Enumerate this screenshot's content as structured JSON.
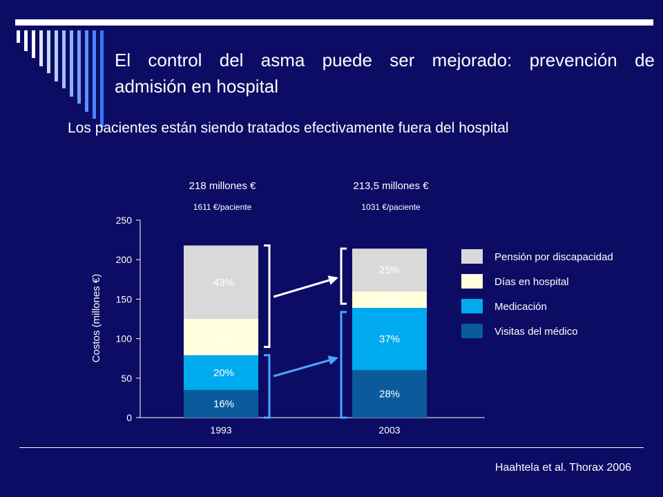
{
  "slide": {
    "title_line1": "El control del asma puede ser mejorado: prevención de",
    "title_line2": "admisión en hospital",
    "subtitle": "Los pacientes están siendo tratados efectivamente fuera del hospital",
    "citation": "Haahtela et al. Thorax 2006",
    "colors": {
      "background": "#0c0c64",
      "arrow_white": "#ffffff",
      "arrow_blue": "#4aa6ff"
    }
  },
  "chart_data": {
    "type": "bar",
    "stacked": true,
    "categories": [
      "1993",
      "2003"
    ],
    "ylabel": "Costos (millones €)",
    "ylim": [
      0,
      250
    ],
    "yticks": [
      0,
      50,
      100,
      150,
      200,
      250
    ],
    "totals": [
      "218 millones €",
      "213,5 millones €"
    ],
    "per_patient": [
      "1611 €/paciente",
      "1031 €/paciente"
    ],
    "legend_position": "right",
    "series": [
      {
        "name": "Visitas del médico",
        "color": "#0a5a9c",
        "values": [
          35,
          60
        ],
        "labels": [
          "16%",
          "28%"
        ]
      },
      {
        "name": "Medicación",
        "color": "#00aaee",
        "values": [
          44,
          79
        ],
        "labels": [
          "20%",
          "37%"
        ]
      },
      {
        "name": "Días en hospital",
        "color": "#ffffdd",
        "values": [
          46,
          21
        ],
        "labels": [
          "21%",
          "10%"
        ]
      },
      {
        "name": "Pensión por discapacidad",
        "color": "#d9d9d9",
        "values": [
          93,
          54
        ],
        "labels": [
          "43%",
          "25%"
        ]
      }
    ]
  }
}
